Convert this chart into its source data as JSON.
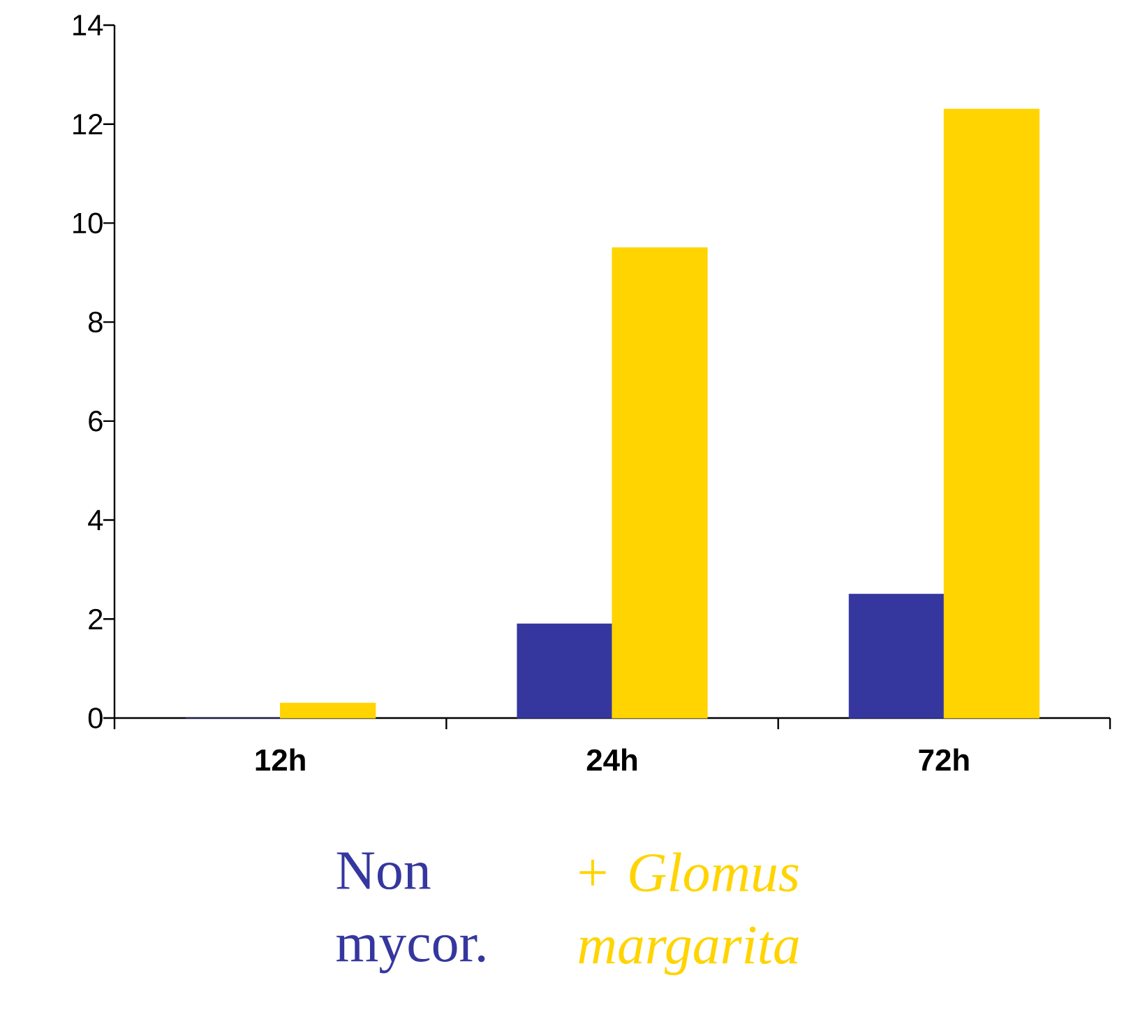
{
  "chart_data": {
    "type": "bar",
    "categories": [
      "12h",
      "24h",
      "72h"
    ],
    "series": [
      {
        "name": "Non mycor.",
        "color": "#35379f",
        "values": [
          0,
          1.9,
          2.5
        ]
      },
      {
        "name": "+ *Glomus margarita*",
        "color": "#ffd400",
        "values": [
          0.3,
          9.5,
          12.3
        ]
      }
    ],
    "ylim": [
      0,
      14
    ],
    "yticks": [
      0,
      2,
      4,
      6,
      8,
      10,
      12,
      14
    ],
    "grid": false,
    "legend": "bottom"
  }
}
